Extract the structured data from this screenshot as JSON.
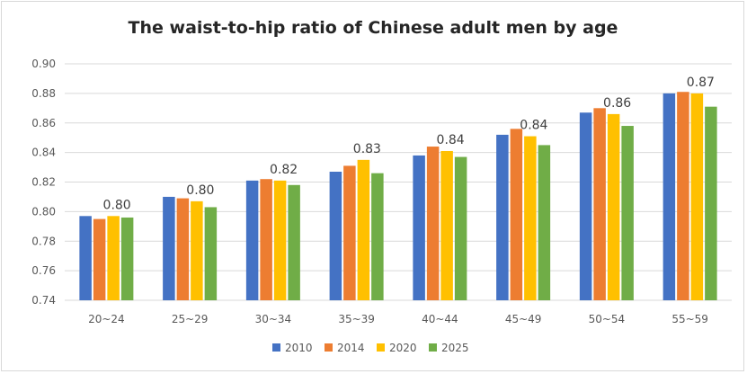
{
  "chart_data": {
    "type": "bar",
    "title": "The waist-to-hip ratio of Chinese adult men by age",
    "xlabel": "",
    "ylabel": "",
    "ylim": [
      0.74,
      0.9
    ],
    "yticks": [
      "0.74",
      "0.76",
      "0.78",
      "0.80",
      "0.82",
      "0.84",
      "0.86",
      "0.88",
      "0.90"
    ],
    "grid": true,
    "legend": "bottom",
    "categories": [
      "20~24",
      "25~29",
      "30~34",
      "35~39",
      "40~44",
      "45~49",
      "50~54",
      "55~59"
    ],
    "series": [
      {
        "name": "2010",
        "color": "#4472c4",
        "values": [
          0.797,
          0.81,
          0.821,
          0.827,
          0.838,
          0.852,
          0.867,
          0.88
        ]
      },
      {
        "name": "2014",
        "color": "#ed7d31",
        "values": [
          0.795,
          0.809,
          0.822,
          0.831,
          0.844,
          0.856,
          0.87,
          0.881
        ]
      },
      {
        "name": "2020",
        "color": "#ffc000",
        "values": [
          0.797,
          0.807,
          0.821,
          0.835,
          0.841,
          0.851,
          0.866,
          0.88
        ]
      },
      {
        "name": "2025",
        "color": "#70ad47",
        "values": [
          0.796,
          0.803,
          0.818,
          0.826,
          0.837,
          0.845,
          0.858,
          0.871
        ]
      }
    ],
    "data_labels": [
      "0.80",
      "0.80",
      "0.82",
      "0.83",
      "0.84",
      "0.84",
      "0.86",
      "0.87"
    ]
  }
}
